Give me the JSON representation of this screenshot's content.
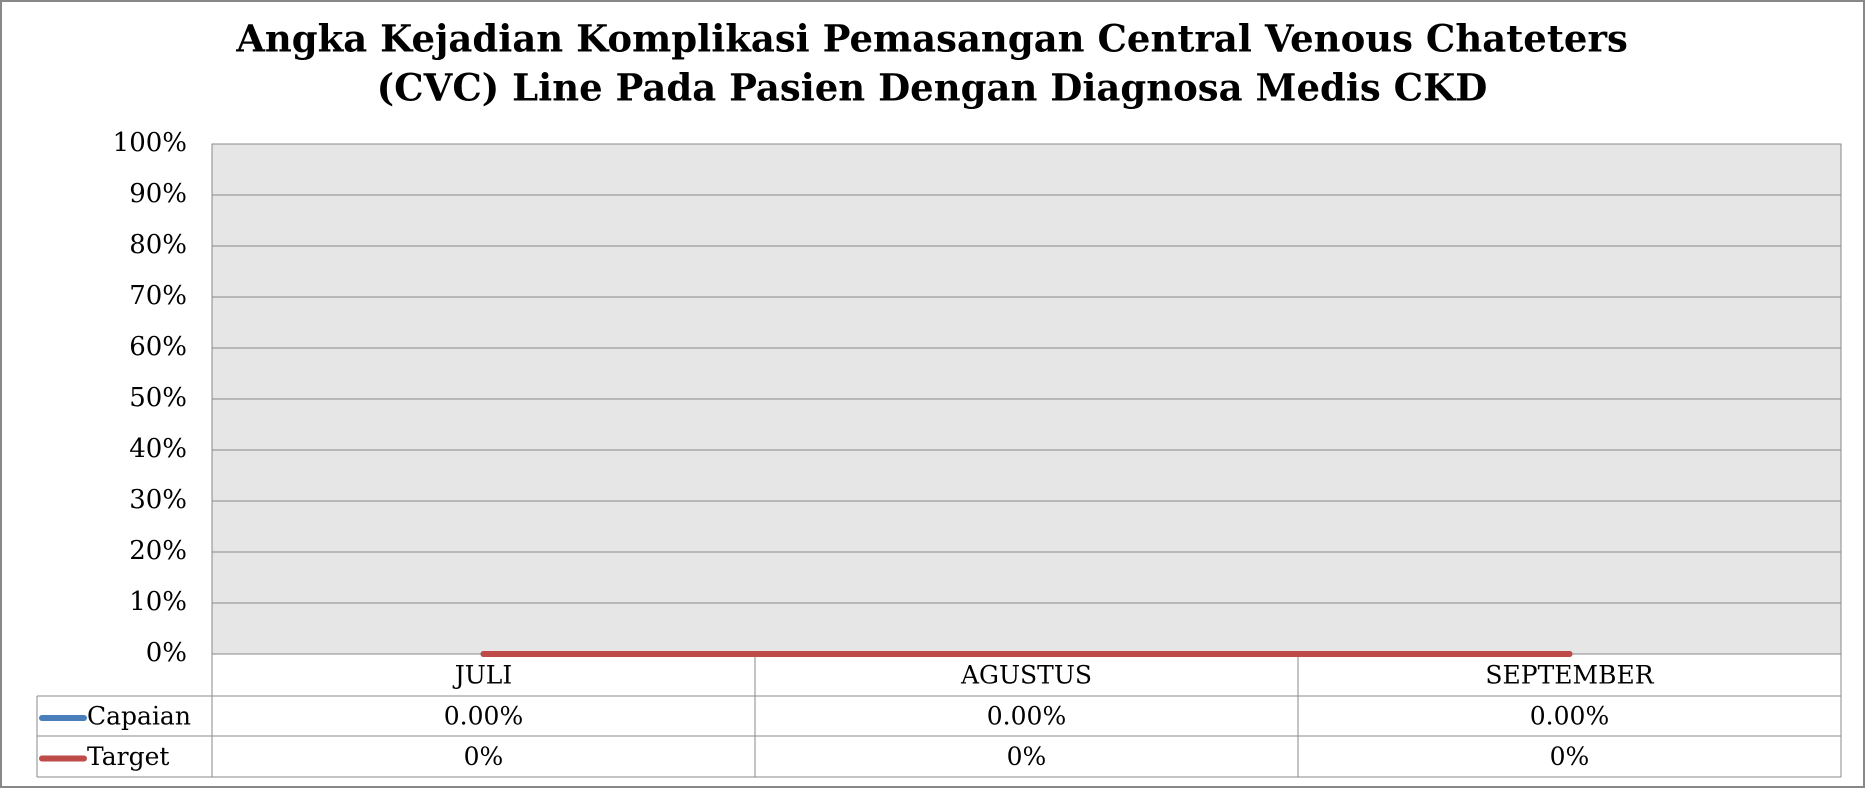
{
  "chart_data": {
    "type": "line",
    "title": [
      "Angka Kejadian Komplikasi Pemasangan Central Venous Chateters",
      "(CVC) Line Pada Pasien Dengan Diagnosa Medis CKD"
    ],
    "categories": [
      "JULI",
      "AGUSTUS",
      "SEPTEMBER"
    ],
    "series": [
      {
        "name": "Capaian",
        "color": "#4a7ebb",
        "values": [
          0,
          0,
          0
        ],
        "value_labels": [
          "0.00%",
          "0.00%",
          "0.00%"
        ]
      },
      {
        "name": "Target",
        "color": "#be4b48",
        "values": [
          0,
          0,
          0
        ],
        "value_labels": [
          "0%",
          "0%",
          "0%"
        ]
      }
    ],
    "ylim": [
      0,
      100
    ],
    "yticks": [
      {
        "value": 0,
        "label": "0%"
      },
      {
        "value": 10,
        "label": "10%"
      },
      {
        "value": 20,
        "label": "20%"
      },
      {
        "value": 30,
        "label": "30%"
      },
      {
        "value": 40,
        "label": "40%"
      },
      {
        "value": 50,
        "label": "50%"
      },
      {
        "value": 60,
        "label": "60%"
      },
      {
        "value": 70,
        "label": "70%"
      },
      {
        "value": 80,
        "label": "80%"
      },
      {
        "value": 90,
        "label": "90%"
      },
      {
        "value": 100,
        "label": "100%"
      }
    ],
    "grid": true
  }
}
